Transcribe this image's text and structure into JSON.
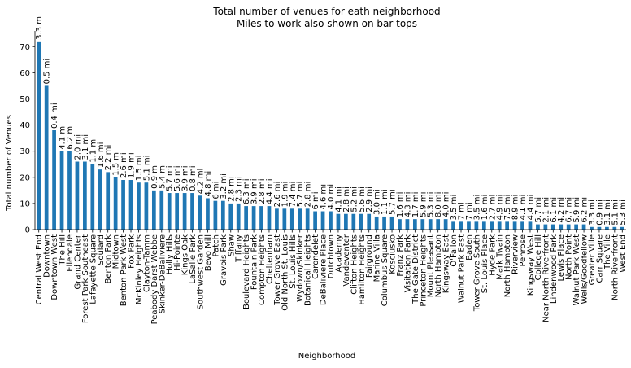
{
  "chart_data": {
    "type": "bar",
    "title": "Total number of venues for eath neighborhood",
    "subtitle": "Miles to work also shown on bar tops",
    "xlabel": "Neighborhood",
    "ylabel": "Total number of Venues",
    "ylim": [
      0,
      76
    ],
    "yticks": [
      0,
      10,
      20,
      30,
      40,
      50,
      60,
      70
    ],
    "bar_color": "#1f77b4",
    "categories": [
      "Central West End",
      "Downtown",
      "Downtown West",
      "The Hill",
      "Ellendale",
      "Grand Center",
      "Forest Park Southeast",
      "Lafayette Square",
      "Soulard",
      "Benton Park",
      "Midtown",
      "Benton Park West",
      "Fox Park",
      "McKinley Heights",
      "Clayton-Tamm",
      "Peabody Darst Webbe",
      "Skinker-DeBaliviere",
      "Holly Hills",
      "Hi-Pointe",
      "Kings Oak",
      "LaSalle Park",
      "Southwest Garden",
      "Bevo Mill",
      "Patch",
      "Gravois Park",
      "Shaw",
      "Tiffany",
      "Boulevard Heights",
      "Fountain Park",
      "Compton Heights",
      "Cheltenham",
      "Tower Grove East",
      "Old North St. Louis",
      "St. Louis Hills",
      "Wydown/Skinker",
      "Botanical Heights",
      "Carondelet",
      "DeBaliviere Place",
      "Dutchtown",
      "Academy",
      "Vandeventer",
      "Clifton Heights",
      "Hamilton Heights",
      "Fairground",
      "Marine Villa",
      "Columbus Square",
      "Kosciusko",
      "Franz Park",
      "Visitation Park",
      "The Gate District",
      "Princeton Heights",
      "Mount Pleasant",
      "North Hampton",
      "Kingsway East",
      "O'Fallon",
      "Walnut Park East",
      "Baden",
      "Tower Grove South",
      "St. Louis Place",
      "Hyde Park",
      "Mark Twain",
      "North Hampton",
      "Riverview",
      "Penrose",
      "Kingsway West",
      "College Hill",
      "Near North Riverfront",
      "Lindenwood Park",
      "Lewis Place",
      "North Point",
      "Walnut Park West",
      "Wells/Goodfellow",
      "Greater Ville",
      "Carr Square",
      "The Ville",
      "North Riverfront",
      "West End"
    ],
    "values": [
      72,
      55,
      38,
      30,
      30,
      26,
      26,
      25,
      23,
      22,
      20,
      19,
      19,
      18,
      18,
      15,
      15,
      14,
      14,
      14,
      14,
      13,
      12,
      11,
      11,
      10,
      10,
      9,
      9,
      9,
      9,
      8,
      8,
      8,
      8,
      8,
      7,
      7,
      7,
      6,
      6,
      6,
      6,
      6,
      5,
      5,
      5,
      4,
      4,
      4,
      4,
      4,
      4,
      4,
      3,
      3,
      3,
      3,
      3,
      3,
      3,
      3,
      3,
      3,
      3,
      2,
      2,
      2,
      2,
      2,
      2,
      2,
      1,
      1,
      1,
      1,
      1
    ],
    "bar_labels": [
      "3.3 mi",
      "0.5 mi",
      "0.4 mi",
      "4.1 mi",
      "6.2 mi",
      "2.0 mi",
      "3.1 mi",
      "1.1 mi",
      "1.6 mi",
      "2.2 mi",
      "1.5 mi",
      "2.6 mi",
      "1.9 mi",
      "1.5 mi",
      "5.1 mi",
      "0.9 mi",
      "5.4 mi",
      "5.7 mi",
      "5.6 mi",
      "3.9 mi",
      "0.8 mi",
      "4.2 mi",
      "4.8 mi",
      "6 mi",
      "3.2 mi",
      "2.8 mi",
      "2.3 mi",
      "6.3 mi",
      "3.9 mi",
      "2.8 mi",
      "4.4 mi",
      "2.6 mi",
      "1.9 mi",
      "7.4 mi",
      "5.7 mi",
      "2.8 mi",
      "6 mi",
      "4.6 mi",
      "4.0 mi",
      "4.1 mi",
      "2.8 mi",
      "5.2 mi",
      "5.6 mi",
      "2.9 mi",
      "3.0 mi",
      "1.1 mi",
      "5.7 mi",
      "1.6 mi",
      "4.3 mi",
      "1.7 mi",
      "5.9 mi",
      "5.3 mi",
      "8.0 mi",
      "4.0 mi",
      "3.5 mi",
      "7 mi",
      "7 mi",
      "3.5 mi",
      "1.6 mi",
      "2.7 mi",
      "4.9 mi",
      "7.5 mi",
      "8.9 mi",
      "4.1 mi",
      "4.4 mi",
      "5.7 mi",
      "2.1 mi",
      "6.1 mi",
      "4.2 mi",
      "6.7 mi",
      "5.9 mi",
      "6.2 mi",
      "3.3 mi",
      "0.9 mi",
      "3.1 mi",
      "5.1 mi",
      "5.3 mi"
    ]
  }
}
